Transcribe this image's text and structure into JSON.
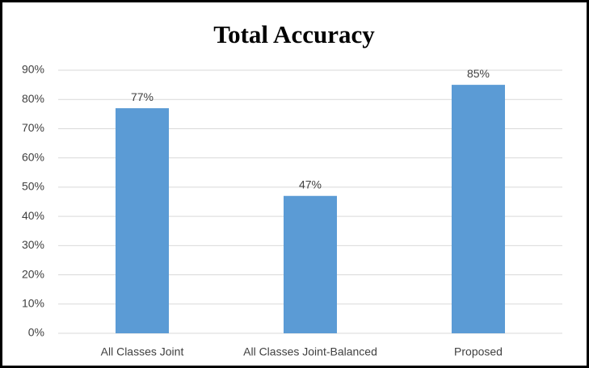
{
  "chart_data": {
    "type": "bar",
    "title": "Total Accuracy",
    "categories": [
      "All Classes Joint",
      "All Classes Joint-Balanced",
      "Proposed"
    ],
    "values": [
      77,
      47,
      85
    ],
    "value_labels": [
      "77%",
      "47%",
      "85%"
    ],
    "color": "#5b9bd5",
    "ylim": [
      0,
      90
    ],
    "yticks": [
      {
        "value": 0,
        "label": "0%"
      },
      {
        "value": 10,
        "label": "10%"
      },
      {
        "value": 20,
        "label": "20%"
      },
      {
        "value": 30,
        "label": "30%"
      },
      {
        "value": 40,
        "label": "40%"
      },
      {
        "value": 50,
        "label": "50%"
      },
      {
        "value": 60,
        "label": "60%"
      },
      {
        "value": 70,
        "label": "70%"
      },
      {
        "value": 80,
        "label": "80%"
      },
      {
        "value": 90,
        "label": "90%"
      }
    ],
    "grid": true
  }
}
